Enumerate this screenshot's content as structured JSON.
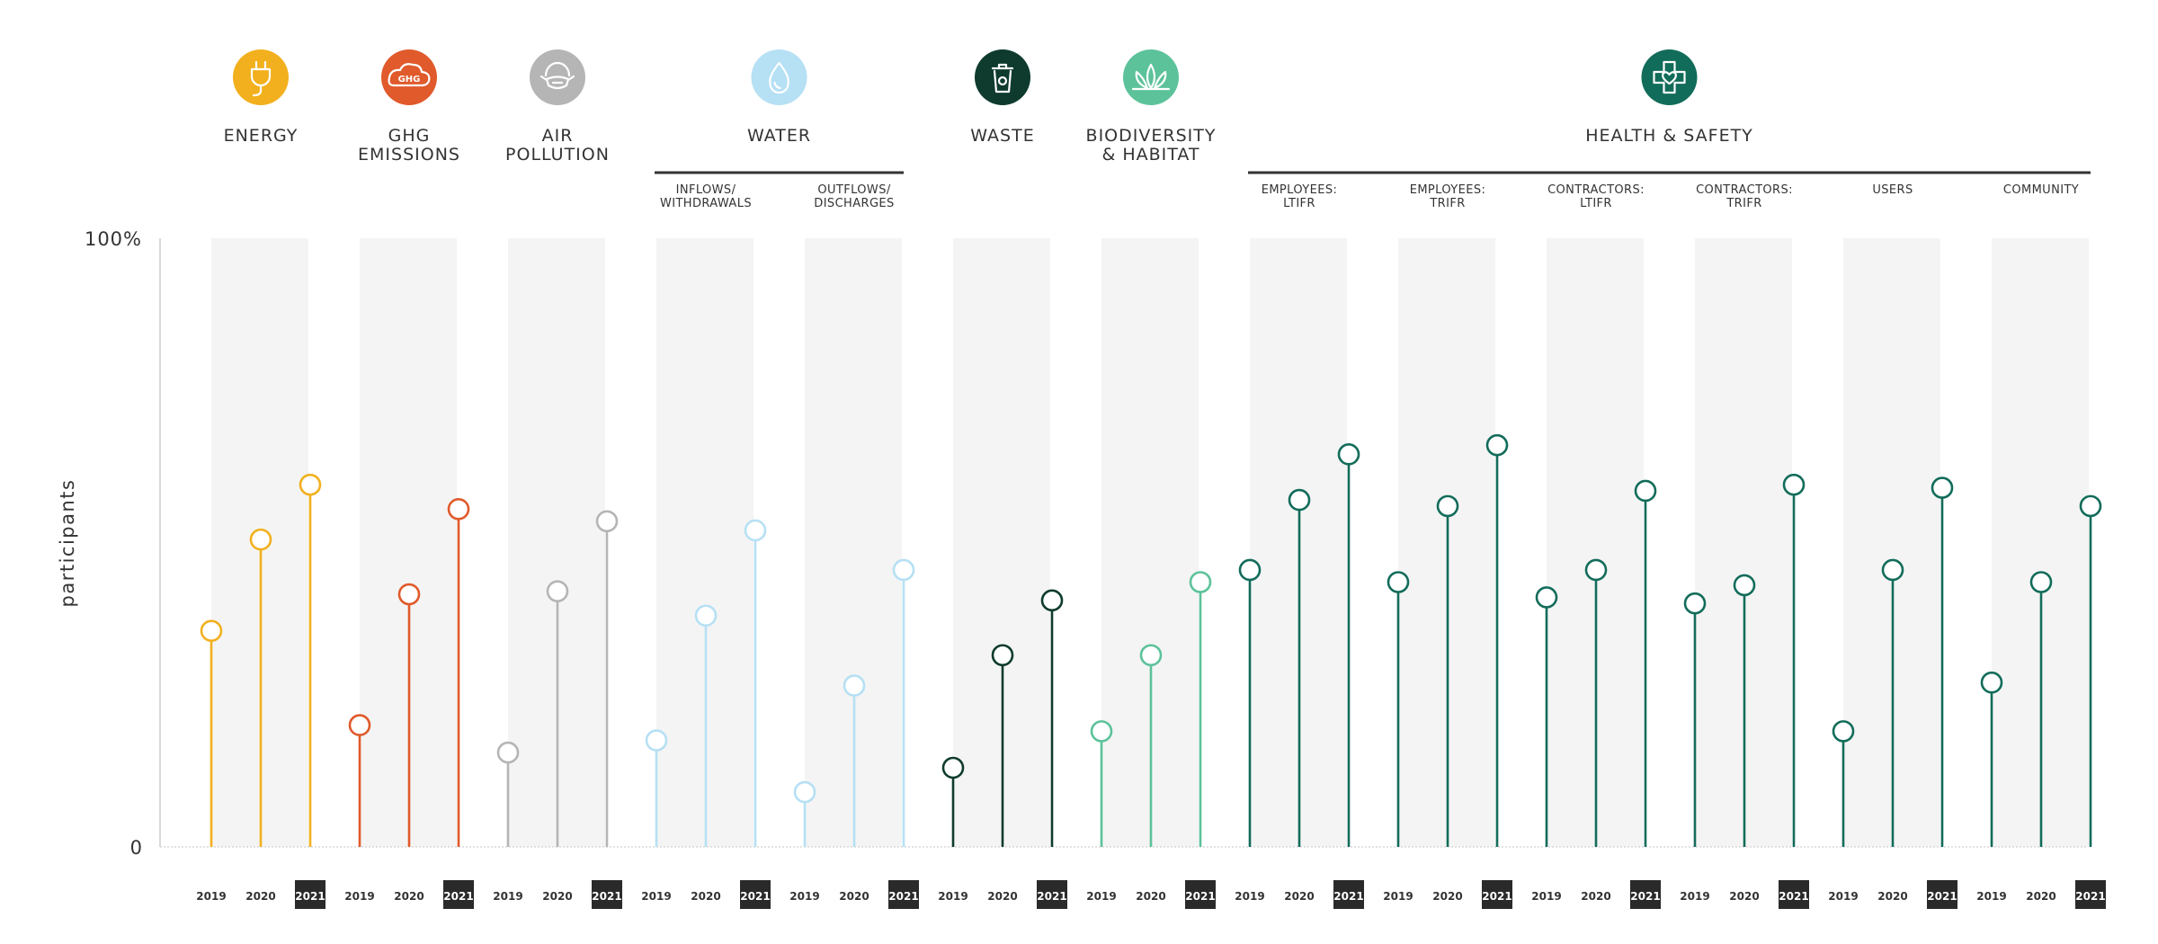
{
  "chart_data": {
    "type": "lollipop",
    "ylabel": "participants",
    "yticks": [
      "100%",
      "0"
    ],
    "ylim": [
      0,
      100
    ],
    "years": [
      "2019",
      "2020",
      "2021"
    ],
    "highlight_year": "2021",
    "grid": false,
    "categories": [
      {
        "id": "energy",
        "label": [
          "ENERGY"
        ],
        "group": null,
        "color": "#F2B01E",
        "values": [
          35.5,
          50.5,
          59.5
        ]
      },
      {
        "id": "ghg",
        "label": [
          "GHG",
          "EMISSIONS"
        ],
        "group": null,
        "color": "#E05A2B",
        "values": [
          20,
          41.5,
          55.5
        ]
      },
      {
        "id": "air",
        "label": [
          "AIR",
          "POLLUTION"
        ],
        "group": null,
        "color": "#B5B5B5",
        "values": [
          15.5,
          42,
          53.5
        ]
      },
      {
        "id": "water-in",
        "label": [
          "INFLOWS/",
          "WITHDRAWALS"
        ],
        "group": "water",
        "color": "#B6E0F4",
        "values": [
          17.5,
          38,
          52
        ]
      },
      {
        "id": "water-out",
        "label": [
          "OUTFLOWS/",
          "DISCHARGES"
        ],
        "group": "water",
        "color": "#B6E0F4",
        "values": [
          9,
          26.5,
          45.5
        ]
      },
      {
        "id": "waste",
        "label": [
          "WASTE"
        ],
        "group": null,
        "color": "#0E3B2E",
        "values": [
          13,
          31.5,
          40.5
        ]
      },
      {
        "id": "biodiversity",
        "label": [
          "BIODIVERSITY",
          "& HABITAT"
        ],
        "group": null,
        "color": "#5CC29A",
        "values": [
          19,
          31.5,
          43.5
        ]
      },
      {
        "id": "hs-emp-ltifr",
        "label": [
          "EMPLOYEES:",
          "LTIFR"
        ],
        "group": "health",
        "color": "#126C5A",
        "values": [
          45.5,
          57,
          64.5
        ]
      },
      {
        "id": "hs-emp-trifr",
        "label": [
          "EMPLOYEES:",
          "TRIFR"
        ],
        "group": "health",
        "color": "#126C5A",
        "values": [
          43.5,
          56,
          66
        ]
      },
      {
        "id": "hs-con-ltifr",
        "label": [
          "CONTRACTORS:",
          "LTIFR"
        ],
        "group": "health",
        "color": "#126C5A",
        "values": [
          41,
          45.5,
          58.5
        ]
      },
      {
        "id": "hs-con-trifr",
        "label": [
          "CONTRACTORS:",
          "TRIFR"
        ],
        "group": "health",
        "color": "#126C5A",
        "values": [
          40,
          43,
          59.5
        ]
      },
      {
        "id": "hs-users",
        "label": [
          "USERS"
        ],
        "group": "health",
        "color": "#126C5A",
        "values": [
          19,
          45.5,
          59
        ]
      },
      {
        "id": "hs-community",
        "label": [
          "COMMUNITY"
        ],
        "group": "health",
        "color": "#126C5A",
        "values": [
          27,
          43.5,
          56
        ]
      }
    ],
    "groups": [
      {
        "id": "water",
        "label": [
          "WATER"
        ],
        "icon": "water-drop-icon",
        "color": "#B6E0F4"
      },
      {
        "id": "health",
        "label": [
          "HEALTH & SAFETY"
        ],
        "icon": "health-shield-cross-icon",
        "color": "#126C5A"
      }
    ],
    "single_icons": {
      "energy": "energy-plug-icon",
      "ghg": "ghg-cloud-icon",
      "air": "air-pollution-mask-icon",
      "waste": "waste-bin-icon",
      "biodiversity": "biodiversity-leaves-icon"
    }
  }
}
